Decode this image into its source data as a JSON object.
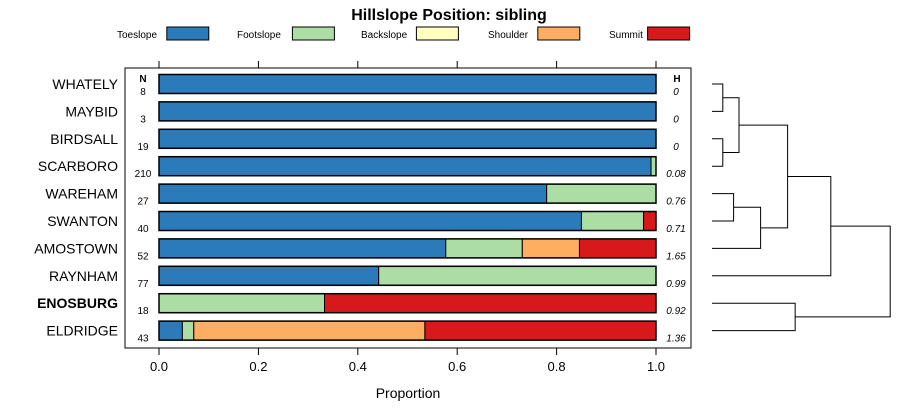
{
  "chart_data": {
    "type": "bar",
    "stacked": true,
    "orientation": "horizontal",
    "title": "Hillslope Position: sibling",
    "xlabel": "Proportion",
    "ylabel": "",
    "xlim": [
      0,
      1
    ],
    "xticks": [
      "0.0",
      "0.2",
      "0.4",
      "0.6",
      "0.8",
      "1.0"
    ],
    "n_header": "N",
    "h_header": "H",
    "legend_position": "top",
    "series": [
      {
        "name": "Toeslope",
        "color": "#2b7bba"
      },
      {
        "name": "Footslope",
        "color": "#abdda4"
      },
      {
        "name": "Backslope",
        "color": "#ffffbf"
      },
      {
        "name": "Shoulder",
        "color": "#fdae61"
      },
      {
        "name": "Summit",
        "color": "#d7191c"
      }
    ],
    "rows": [
      {
        "label": "WHATELY",
        "bold": false,
        "n": "8",
        "h": "0",
        "values": [
          1.0,
          0,
          0,
          0,
          0
        ]
      },
      {
        "label": "MAYBID",
        "bold": false,
        "n": "3",
        "h": "0",
        "values": [
          1.0,
          0,
          0,
          0,
          0
        ]
      },
      {
        "label": "BIRDSALL",
        "bold": false,
        "n": "19",
        "h": "0",
        "values": [
          1.0,
          0,
          0,
          0,
          0
        ]
      },
      {
        "label": "SCARBORO",
        "bold": false,
        "n": "210",
        "h": "0.08",
        "values": [
          0.99,
          0.01,
          0,
          0,
          0
        ]
      },
      {
        "label": "WAREHAM",
        "bold": false,
        "n": "27",
        "h": "0.76",
        "values": [
          0.78,
          0.22,
          0,
          0,
          0
        ]
      },
      {
        "label": "SWANTON",
        "bold": false,
        "n": "40",
        "h": "0.71",
        "values": [
          0.85,
          0.125,
          0,
          0,
          0.025
        ]
      },
      {
        "label": "AMOSTOWN",
        "bold": false,
        "n": "52",
        "h": "1.65",
        "values": [
          0.577,
          0.154,
          0,
          0.115,
          0.154
        ]
      },
      {
        "label": "RAYNHAM",
        "bold": false,
        "n": "77",
        "h": "0.99",
        "values": [
          0.442,
          0.558,
          0,
          0,
          0
        ]
      },
      {
        "label": "ENOSBURG",
        "bold": true,
        "n": "18",
        "h": "0.92",
        "values": [
          0,
          0.333,
          0,
          0,
          0.667
        ]
      },
      {
        "label": "ELDRIDGE",
        "bold": false,
        "n": "43",
        "h": "1.36",
        "values": [
          0.047,
          0.023,
          0,
          0.465,
          0.465
        ]
      }
    ],
    "dendrogram": {
      "merges": [
        {
          "a": 0,
          "b": 1,
          "height": 0.1
        },
        {
          "a": 2,
          "b": 3,
          "height": 0.1
        },
        {
          "a": 4,
          "b": 5,
          "height": 0.2
        },
        {
          "a": "m0",
          "b": "m1",
          "height": 0.25
        },
        {
          "a": "m2",
          "b": 6,
          "height": 0.45
        },
        {
          "a": "m3",
          "b": "m4",
          "height": 0.7
        },
        {
          "a": 8,
          "b": 9,
          "height": 0.77
        },
        {
          "a": "m5",
          "b": 7,
          "height": 1.1
        },
        {
          "a": "m7",
          "b": "m6",
          "height": 1.65
        }
      ]
    }
  }
}
